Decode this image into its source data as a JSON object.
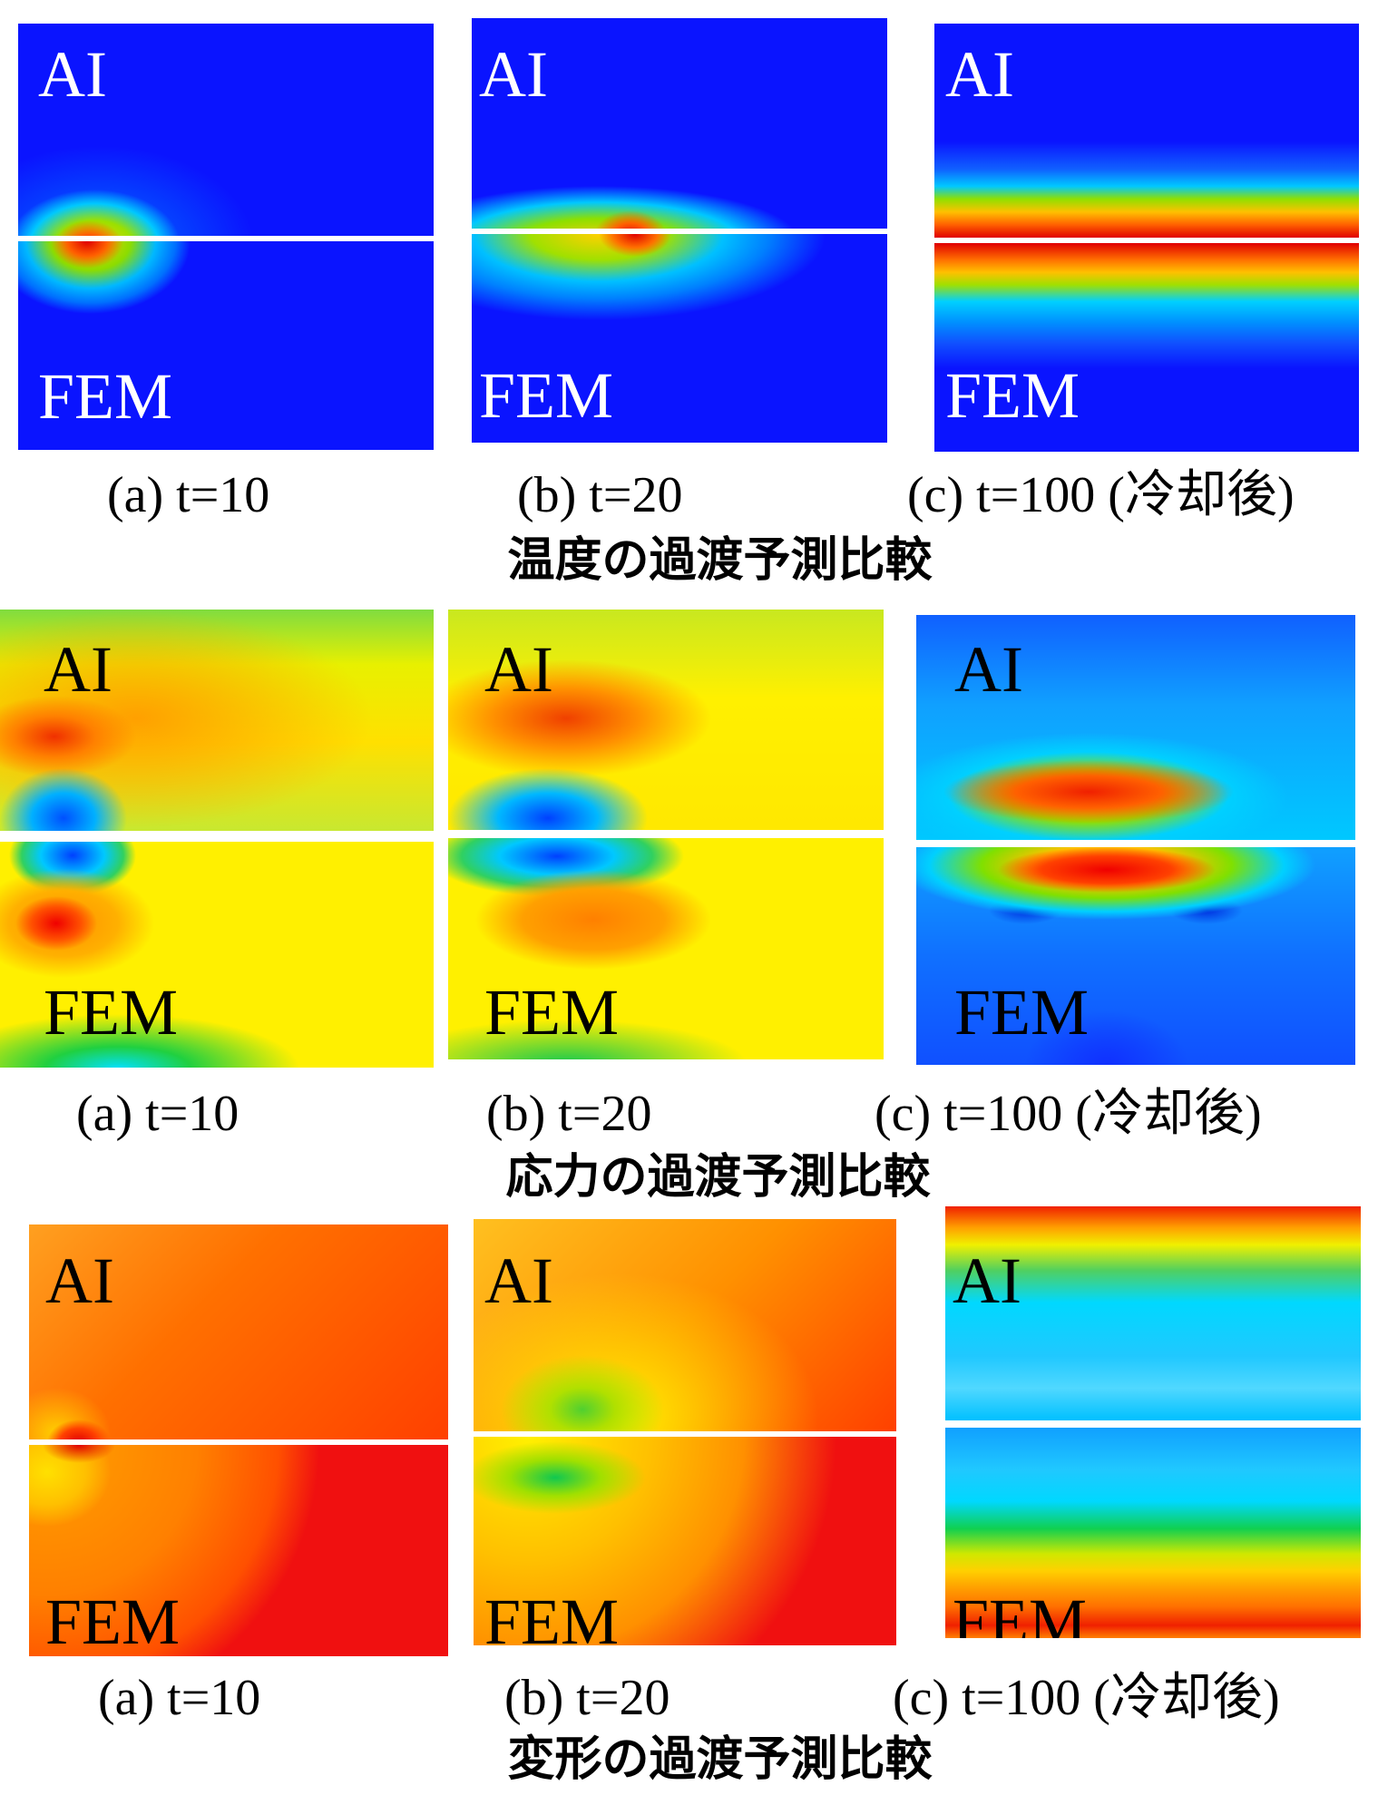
{
  "rows": [
    {
      "title": "温度の過渡予測比較",
      "panels": [
        {
          "top_label": "AI",
          "bottom_label": "FEM",
          "caption": "(a)  t=10"
        },
        {
          "top_label": "AI",
          "bottom_label": "FEM",
          "caption": "(b)  t=20"
        },
        {
          "top_label": "AI",
          "bottom_label": "FEM",
          "caption": "(c)  t=100 (冷却後)"
        }
      ]
    },
    {
      "title": "応力の過渡予測比較",
      "panels": [
        {
          "top_label": "AI",
          "bottom_label": "FEM",
          "caption": "(a)  t=10"
        },
        {
          "top_label": "AI",
          "bottom_label": "FEM",
          "caption": "(b)  t=20"
        },
        {
          "top_label": "AI",
          "bottom_label": "FEM",
          "caption": "(c)  t=100 (冷却後)"
        }
      ]
    },
    {
      "title": "変形の過渡予測比較",
      "panels": [
        {
          "top_label": "AI",
          "bottom_label": "FEM",
          "caption": "(a)  t=10"
        },
        {
          "top_label": "AI",
          "bottom_label": "FEM",
          "caption": "(b)  t=20"
        },
        {
          "top_label": "AI",
          "bottom_label": "FEM",
          "caption": "(c)  t=100 (冷却後)"
        }
      ]
    }
  ]
}
